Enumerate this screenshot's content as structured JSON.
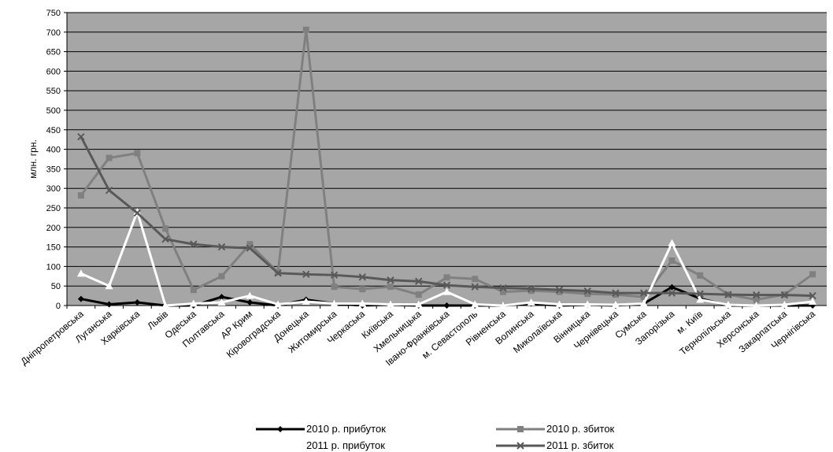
{
  "chart_data": {
    "type": "line",
    "y_label": "млн. грн.",
    "categories": [
      "Дніпропетровська",
      "Луганська",
      "Харківська",
      "Львів",
      "Одеська",
      "Полтавська",
      "АР Крим",
      "Кіровоградська",
      "Донецька",
      "Житомирська",
      "Черкаська",
      "Київська",
      "Хмельницька",
      "Івано-Франківська",
      "м. Севастополь",
      "Рівненська",
      "Волинська",
      "Миколаївська",
      "Вінницька",
      "Чернівецька",
      "Сумська",
      "Запорізька",
      "м. Київ",
      "Тернопільська",
      "Херсонська",
      "Закарпатська",
      "Чернігівська"
    ],
    "series": [
      {
        "name": "2010 р. прибуток",
        "color": "#000000",
        "marker": "diamond",
        "values": [
          17,
          3,
          8,
          0,
          0,
          22,
          8,
          0,
          15,
          5,
          0,
          2,
          0,
          0,
          0,
          0,
          5,
          0,
          2,
          0,
          5,
          47,
          18,
          0,
          0,
          0,
          0
        ]
      },
      {
        "name": "2010 р. збиток",
        "color": "#808080",
        "marker": "square",
        "values": [
          282,
          378,
          390,
          197,
          40,
          75,
          157,
          85,
          706,
          48,
          42,
          48,
          28,
          72,
          68,
          35,
          38,
          35,
          30,
          28,
          22,
          115,
          77,
          28,
          15,
          28,
          80
        ]
      },
      {
        "name": "2011 р. прибуток",
        "color": "#ffffff",
        "marker": "triangle",
        "values": [
          82,
          50,
          240,
          0,
          5,
          8,
          25,
          3,
          10,
          5,
          5,
          3,
          3,
          35,
          3,
          0,
          8,
          3,
          3,
          2,
          5,
          160,
          15,
          2,
          0,
          2,
          10
        ]
      },
      {
        "name": "2011 р. збиток",
        "color": "#595959",
        "marker": "x",
        "values": [
          432,
          295,
          237,
          170,
          157,
          150,
          147,
          83,
          80,
          78,
          73,
          65,
          62,
          52,
          48,
          45,
          43,
          40,
          37,
          32,
          32,
          32,
          30,
          28,
          27,
          27,
          25
        ]
      }
    ],
    "ylim": [
      0,
      750
    ],
    "yticks": [
      0,
      50,
      100,
      150,
      200,
      250,
      300,
      350,
      400,
      450,
      500,
      550,
      600,
      650,
      700,
      750
    ],
    "grid": true,
    "plot_background": "#a6a6a6"
  }
}
